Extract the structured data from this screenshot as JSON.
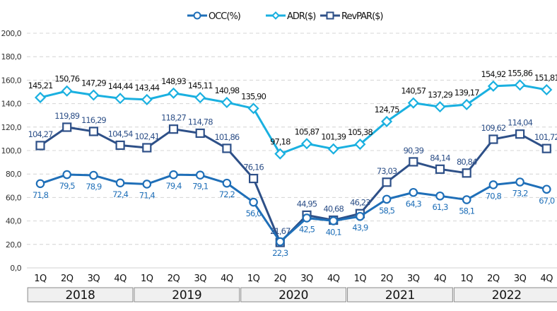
{
  "chart_data": {
    "type": "line",
    "title": "",
    "xlabel": "",
    "ylabel": "",
    "ylim": [
      0,
      200
    ],
    "yticks": [
      0,
      20,
      40,
      60,
      80,
      100,
      120,
      140,
      160,
      180,
      200
    ],
    "ytick_labels": [
      "0,0",
      "20,0",
      "40,0",
      "60,0",
      "80,0",
      "100,0",
      "120,0",
      "140,0",
      "160,0",
      "180,0",
      "200,0"
    ],
    "grid": "horizontal dashed",
    "legend_position": "top-center",
    "categories": [
      "1Q",
      "2Q",
      "3Q",
      "4Q",
      "1Q",
      "2Q",
      "3Q",
      "4Q",
      "1Q",
      "2Q",
      "3Q",
      "4Q",
      "1Q",
      "2Q",
      "3Q",
      "4Q",
      "1Q",
      "2Q",
      "3Q",
      "4Q"
    ],
    "groups": [
      {
        "label": "2018",
        "count": 4
      },
      {
        "label": "2019",
        "count": 4
      },
      {
        "label": "2020",
        "count": 4
      },
      {
        "label": "2021",
        "count": 4
      },
      {
        "label": "2022",
        "count": 4
      }
    ],
    "series": [
      {
        "name": "OCC(%)",
        "color": "#1f6fb8",
        "label_color": "#1f6fb8",
        "marker": "circle",
        "label_position": "below",
        "values": [
          71.8,
          79.5,
          78.9,
          72.4,
          71.4,
          79.4,
          79.1,
          72.2,
          56.0,
          22.3,
          42.5,
          40.1,
          43.9,
          58.5,
          64.3,
          61.3,
          58.1,
          70.8,
          73.2,
          67.0
        ],
        "labels": [
          "71,8",
          "79,5",
          "78,9",
          "72,4",
          "71,4",
          "79,4",
          "79,1",
          "72,2",
          "56,0",
          "22,3",
          "42,5",
          "40,1",
          "43,9",
          "58,5",
          "64,3",
          "61,3",
          "58,1",
          "70,8",
          "73,2",
          "67,0"
        ]
      },
      {
        "name": "ADR($)",
        "color": "#1ab0e0",
        "label_color": "#111111",
        "marker": "diamond",
        "label_position": "above",
        "values": [
          145.21,
          150.76,
          147.29,
          144.44,
          143.44,
          148.93,
          145.11,
          140.98,
          135.9,
          97.18,
          105.87,
          101.39,
          105.38,
          124.75,
          140.57,
          137.29,
          139.17,
          154.92,
          155.86,
          151.81
        ],
        "labels": [
          "145,21",
          "150,76",
          "147,29",
          "144,44",
          "143,44",
          "148,93",
          "145,11",
          "140,98",
          "135,90",
          "97,18",
          "105,87",
          "101,39",
          "105,38",
          "124,75",
          "140,57",
          "137,29",
          "139,17",
          "154,92",
          "155,86",
          "151,81"
        ]
      },
      {
        "name": "RevPAR($)",
        "color": "#2e5088",
        "label_color": "#2e5088",
        "marker": "square",
        "label_position": "above",
        "values": [
          104.27,
          119.89,
          116.29,
          104.54,
          102.41,
          118.27,
          114.78,
          101.86,
          76.16,
          21.67,
          44.95,
          40.68,
          46.23,
          73.03,
          90.39,
          84.14,
          80.84,
          109.62,
          114.04,
          101.72
        ],
        "labels": [
          "104,27",
          "119,89",
          "116,29",
          "104,54",
          "102,41",
          "118,27",
          "114,78",
          "101,86",
          "76,16",
          "21,67",
          "44,95",
          "40,68",
          "46,23",
          "73,03",
          "90,39",
          "84,14",
          "80,84",
          "109,62",
          "114,04",
          "101,72"
        ]
      }
    ]
  }
}
